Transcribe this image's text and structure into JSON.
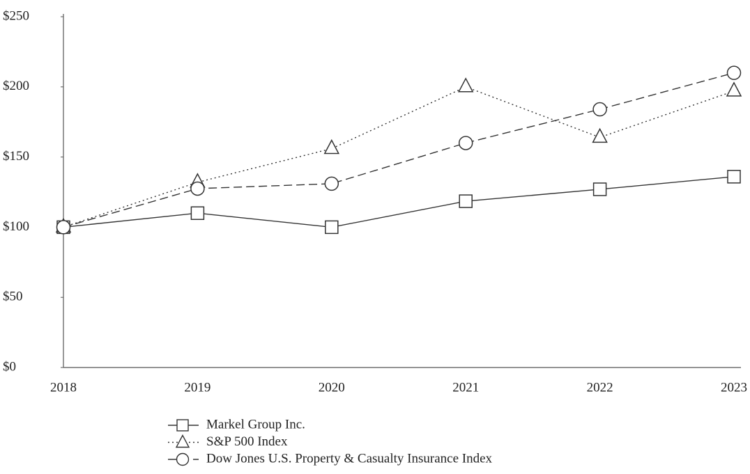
{
  "chart_data": {
    "type": "line",
    "categories": [
      "2018",
      "2019",
      "2020",
      "2021",
      "2022",
      "2023"
    ],
    "series": [
      {
        "name": "Markel Group Inc.",
        "color": "#333333",
        "dash": "solid",
        "marker": "square",
        "values": [
          100,
          110,
          100,
          118.5,
          127,
          136
        ]
      },
      {
        "name": "S&P 500 Index",
        "color": "#333333",
        "dash": "dotted",
        "marker": "triangle",
        "values": [
          100,
          132,
          156,
          200,
          164,
          197
        ]
      },
      {
        "name": "Dow Jones U.S. Property & Casualty Insurance Index",
        "color": "#333333",
        "dash": "dashed",
        "marker": "circle",
        "values": [
          100,
          127.5,
          131,
          160,
          184,
          210
        ]
      }
    ],
    "ylim": [
      0,
      250
    ],
    "yticks": [
      {
        "value": 0,
        "label": "$0"
      },
      {
        "value": 50,
        "label": "$50"
      },
      {
        "value": 100,
        "label": "$100"
      },
      {
        "value": 150,
        "label": "$150"
      },
      {
        "value": 200,
        "label": "$200"
      },
      {
        "value": 250,
        "label": "$250"
      }
    ],
    "grid": false,
    "legend": "bottom"
  }
}
